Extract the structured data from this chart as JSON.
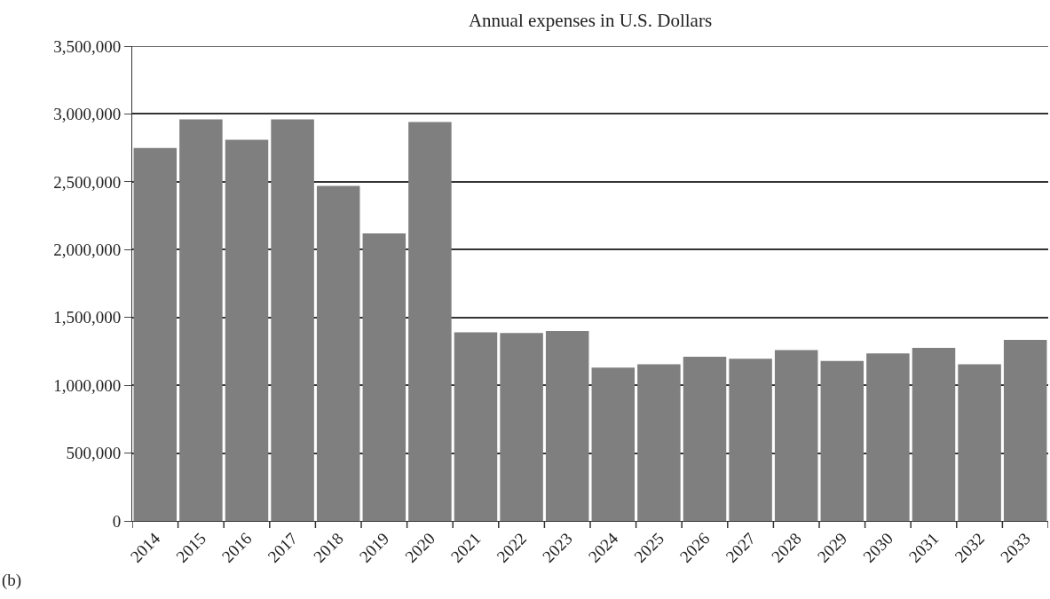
{
  "chart_data": {
    "type": "bar",
    "title": "Annual expenses in U.S. Dollars",
    "categories": [
      "2014",
      "2015",
      "2016",
      "2017",
      "2018",
      "2019",
      "2020",
      "2021",
      "2022",
      "2023",
      "2024",
      "2025",
      "2026",
      "2027",
      "2028",
      "2029",
      "2030",
      "2031",
      "2032",
      "2033"
    ],
    "values": [
      2750000,
      2960000,
      2810000,
      2960000,
      2470000,
      2120000,
      2940000,
      1390000,
      1385000,
      1400000,
      1130000,
      1155000,
      1210000,
      1195000,
      1260000,
      1180000,
      1235000,
      1275000,
      1155000,
      1335000
    ],
    "color": "#7f7f7f",
    "ylim": [
      0,
      3500000
    ],
    "yticks": [
      0,
      {
        "value": 500000,
        "label": "500,000"
      },
      {
        "value": 1000000,
        "label": "1,000,000"
      },
      {
        "value": 1500000,
        "label": "1,500,000"
      },
      {
        "value": 2000000,
        "label": "2,000,000"
      },
      {
        "value": 2500000,
        "label": "2,500,000"
      },
      {
        "value": 3000000,
        "label": "3,000,000"
      },
      {
        "value": 3500000,
        "label": "3,500,000"
      }
    ],
    "grid": "y",
    "annotations": [
      "(b)"
    ]
  }
}
